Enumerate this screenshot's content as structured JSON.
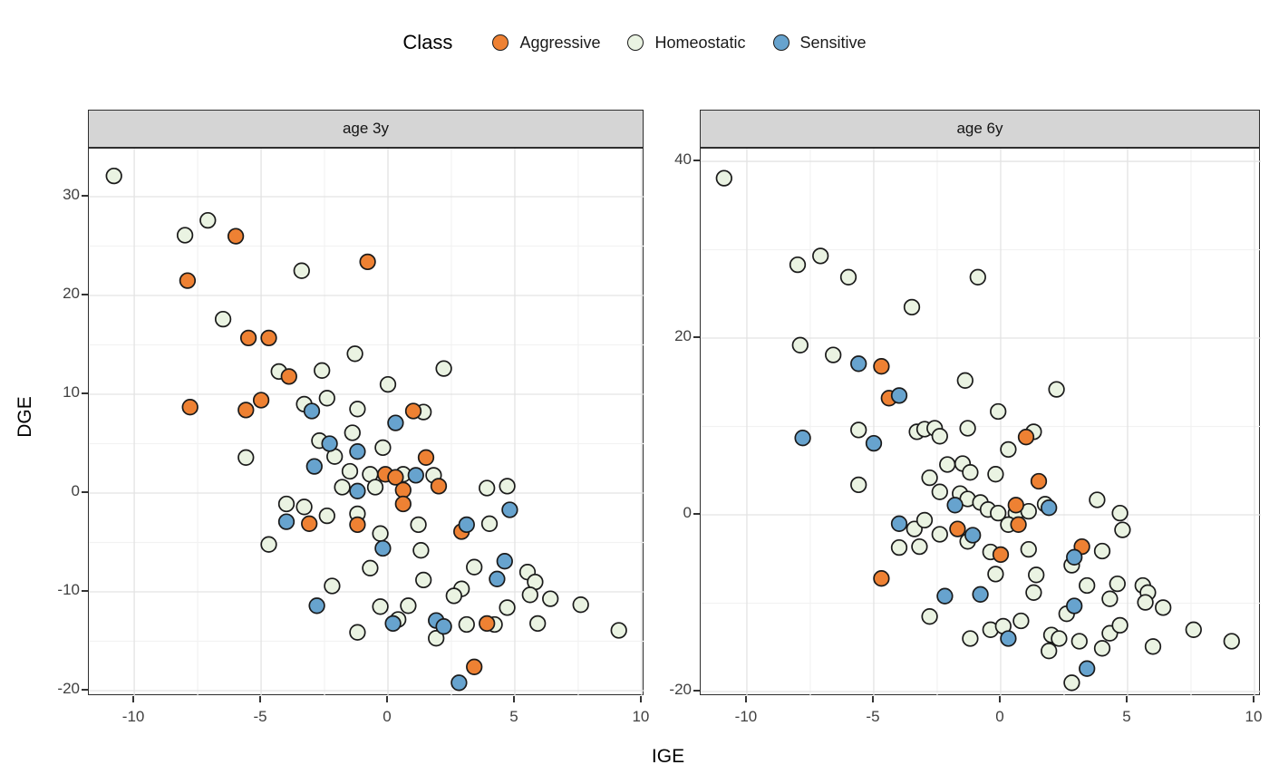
{
  "legend": {
    "title": "Class",
    "items": [
      {
        "label": "Aggressive",
        "color": "#EE8133"
      },
      {
        "label": "Homeostatic",
        "color": "#EAF3E2"
      },
      {
        "label": "Sensitive",
        "color": "#67A3CE"
      }
    ]
  },
  "axes": {
    "x_label": "IGE",
    "y_label": "DGE"
  },
  "colors": {
    "point_stroke": "#1a1a1a",
    "grid_major": "#e3e3e3",
    "grid_minor": "#f2f2f2",
    "panel_border": "#2e2e2e",
    "strip_bg": "#d5d5d5",
    "tick_text": "#404040"
  },
  "chart_data": [
    {
      "type": "scatter",
      "facet": "age 3y",
      "xlabel": "IGE",
      "ylabel": "DGE",
      "x_ticks": [
        -10,
        -5,
        0,
        5,
        10
      ],
      "y_ticks": [
        30,
        20,
        10,
        0,
        -10,
        -20
      ],
      "xlim": [
        -11.79,
        10.11
      ],
      "ylim": [
        -20.55,
        34.86
      ],
      "grid": true,
      "legend_position": "top",
      "series": [
        {
          "name": "Aggressive",
          "color": "#EE8133",
          "points": [
            [
              -7.9,
              21.5
            ],
            [
              -6,
              26
            ],
            [
              -0.8,
              23.4
            ],
            [
              -5.5,
              15.7
            ],
            [
              -4.7,
              15.7
            ],
            [
              -3.9,
              11.8
            ],
            [
              -7.8,
              8.7
            ],
            [
              -5.6,
              8.4
            ],
            [
              -5,
              9.4
            ],
            [
              1,
              8.3
            ],
            [
              1.5,
              3.6
            ],
            [
              -0.1,
              1.9
            ],
            [
              0.3,
              1.6
            ],
            [
              2,
              0.7
            ],
            [
              0.6,
              0.3
            ],
            [
              0.6,
              -1.1
            ],
            [
              -3.1,
              -3.1
            ],
            [
              -1.2,
              -3.2
            ],
            [
              2.9,
              -3.9
            ],
            [
              3.9,
              -13.2
            ],
            [
              3.4,
              -17.6
            ]
          ]
        },
        {
          "name": "Homeostatic",
          "color": "#EAF3E2",
          "points": [
            [
              -10.8,
              32.1
            ],
            [
              -7.1,
              27.6
            ],
            [
              -8,
              26.1
            ],
            [
              -3.4,
              22.5
            ],
            [
              -6.5,
              17.6
            ],
            [
              -1.3,
              14.1
            ],
            [
              -4.3,
              12.3
            ],
            [
              -2.6,
              12.4
            ],
            [
              -2.4,
              9.6
            ],
            [
              -3.3,
              9
            ],
            [
              -1.2,
              8.5
            ],
            [
              2.2,
              12.6
            ],
            [
              0,
              11
            ],
            [
              1.4,
              8.2
            ],
            [
              -5.6,
              3.6
            ],
            [
              -2.7,
              5.3
            ],
            [
              -1.4,
              6.1
            ],
            [
              -2.1,
              3.7
            ],
            [
              -1.5,
              2.2
            ],
            [
              -0.7,
              1.9
            ],
            [
              -1.8,
              0.6
            ],
            [
              -4,
              -1.1
            ],
            [
              -3.3,
              -1.4
            ],
            [
              -2.4,
              -2.3
            ],
            [
              -1.2,
              -2.1
            ],
            [
              -4.7,
              -5.2
            ],
            [
              -0.7,
              -7.6
            ],
            [
              -2.2,
              -9.4
            ],
            [
              -1.2,
              -14.1
            ],
            [
              -0.2,
              4.6
            ],
            [
              0.6,
              1.9
            ],
            [
              1.8,
              1.8
            ],
            [
              -0.5,
              0.6
            ],
            [
              3.9,
              0.5
            ],
            [
              4.7,
              0.7
            ],
            [
              1.2,
              -3.2
            ],
            [
              4,
              -3.1
            ],
            [
              -0.3,
              -4.1
            ],
            [
              1.3,
              -5.8
            ],
            [
              3.4,
              -7.5
            ],
            [
              1.4,
              -8.8
            ],
            [
              5.5,
              -8
            ],
            [
              5.8,
              -9
            ],
            [
              5.6,
              -10.3
            ],
            [
              6.4,
              -10.7
            ],
            [
              2.9,
              -9.7
            ],
            [
              2.6,
              -10.4
            ],
            [
              -0.3,
              -11.5
            ],
            [
              0.8,
              -11.4
            ],
            [
              4.7,
              -11.6
            ],
            [
              7.6,
              -11.3
            ],
            [
              0.4,
              -12.8
            ],
            [
              1.9,
              -14.7
            ],
            [
              3.1,
              -13.3
            ],
            [
              4.2,
              -13.3
            ],
            [
              5.9,
              -13.2
            ],
            [
              9.1,
              -13.9
            ]
          ]
        },
        {
          "name": "Sensitive",
          "color": "#67A3CE",
          "points": [
            [
              -3,
              8.3
            ],
            [
              0.3,
              7.1
            ],
            [
              -2.3,
              5
            ],
            [
              -2.9,
              2.7
            ],
            [
              -1.2,
              4.2
            ],
            [
              -1.2,
              0.2
            ],
            [
              1.1,
              1.8
            ],
            [
              -4,
              -2.9
            ],
            [
              4.8,
              -1.7
            ],
            [
              3.1,
              -3.2
            ],
            [
              -0.2,
              -5.6
            ],
            [
              4.6,
              -6.9
            ],
            [
              4.3,
              -8.7
            ],
            [
              -2.8,
              -11.4
            ],
            [
              0.2,
              -13.2
            ],
            [
              1.9,
              -12.9
            ],
            [
              2.2,
              -13.5
            ],
            [
              2.8,
              -19.2
            ]
          ]
        }
      ]
    },
    {
      "type": "scatter",
      "facet": "age 6y",
      "xlabel": "IGE",
      "ylabel": "DGE",
      "x_ticks": [
        -10,
        -5,
        0,
        5,
        10
      ],
      "y_ticks": [
        40,
        20,
        0,
        -20
      ],
      "xlim": [
        -11.82,
        10.25
      ],
      "ylim": [
        -20.51,
        41.44
      ],
      "grid": true,
      "legend_position": "top",
      "series": [
        {
          "name": "Aggressive",
          "color": "#EE8133",
          "points": [
            [
              -4.7,
              16.8
            ],
            [
              -4.4,
              13.2
            ],
            [
              1,
              8.8
            ],
            [
              1.5,
              3.8
            ],
            [
              0.6,
              1.1
            ],
            [
              0.7,
              -1.1
            ],
            [
              -1.7,
              -1.6
            ],
            [
              0,
              -4.5
            ],
            [
              -4.7,
              -7.2
            ],
            [
              3.2,
              -3.6
            ]
          ]
        },
        {
          "name": "Homeostatic",
          "color": "#EAF3E2",
          "points": [
            [
              -10.9,
              38.1
            ],
            [
              -7.1,
              29.3
            ],
            [
              -8,
              28.3
            ],
            [
              -6,
              26.9
            ],
            [
              -0.9,
              26.9
            ],
            [
              -3.5,
              23.5
            ],
            [
              -7.9,
              19.2
            ],
            [
              -6.6,
              18.1
            ],
            [
              -1.4,
              15.2
            ],
            [
              2.2,
              14.2
            ],
            [
              -0.1,
              11.7
            ],
            [
              -5.6,
              9.6
            ],
            [
              -3.3,
              9.4
            ],
            [
              -3,
              9.7
            ],
            [
              -2.6,
              9.8
            ],
            [
              -2.4,
              8.9
            ],
            [
              -1.3,
              9.8
            ],
            [
              0.3,
              7.4
            ],
            [
              -2.1,
              5.7
            ],
            [
              -1.5,
              5.8
            ],
            [
              -1.2,
              4.8
            ],
            [
              -2.8,
              4.2
            ],
            [
              -5.6,
              3.4
            ],
            [
              -2.4,
              2.6
            ],
            [
              -1.6,
              2.4
            ],
            [
              -1.3,
              1.8
            ],
            [
              -0.8,
              1.4
            ],
            [
              -0.2,
              4.6
            ],
            [
              -0.5,
              0.6
            ],
            [
              -0.1,
              0.2
            ],
            [
              0.6,
              0.2
            ],
            [
              1.1,
              0.4
            ],
            [
              1.75,
              1.2
            ],
            [
              3.8,
              1.7
            ],
            [
              4.7,
              0.2
            ],
            [
              1.3,
              9.4
            ],
            [
              -3.4,
              -1.6
            ],
            [
              -3,
              -0.6
            ],
            [
              -2.4,
              -2.2
            ],
            [
              -1.3,
              -3
            ],
            [
              -4,
              -3.7
            ],
            [
              -3.2,
              -3.6
            ],
            [
              0.3,
              -1.1
            ],
            [
              4.8,
              -1.7
            ],
            [
              1.1,
              -3.9
            ],
            [
              2.8,
              -5.7
            ],
            [
              4,
              -4.1
            ],
            [
              -0.4,
              -4.2
            ],
            [
              -0.2,
              -6.7
            ],
            [
              1.4,
              -6.8
            ],
            [
              1.3,
              -8.8
            ],
            [
              3.4,
              -8
            ],
            [
              4.6,
              -7.8
            ],
            [
              4.3,
              -9.5
            ],
            [
              5.6,
              -8
            ],
            [
              5.8,
              -8.8
            ],
            [
              5.7,
              -9.9
            ],
            [
              6.4,
              -10.5
            ],
            [
              2.6,
              -11.2
            ],
            [
              0.8,
              -12
            ],
            [
              -0.4,
              -13
            ],
            [
              0.1,
              -12.6
            ],
            [
              2,
              -13.6
            ],
            [
              2.3,
              -14
            ],
            [
              1.9,
              -15.4
            ],
            [
              3.1,
              -14.3
            ],
            [
              4,
              -15.1
            ],
            [
              4.3,
              -13.4
            ],
            [
              4.7,
              -12.5
            ],
            [
              6,
              -14.9
            ],
            [
              7.6,
              -13
            ],
            [
              9.1,
              -14.3
            ],
            [
              2.8,
              -19
            ],
            [
              -2.8,
              -11.5
            ],
            [
              -1.2,
              -14
            ]
          ]
        },
        {
          "name": "Sensitive",
          "color": "#67A3CE",
          "points": [
            [
              -5.6,
              17.1
            ],
            [
              -4,
              13.5
            ],
            [
              -7.8,
              8.7
            ],
            [
              -5,
              8.1
            ],
            [
              -1.8,
              1.1
            ],
            [
              1.9,
              0.8
            ],
            [
              -4,
              -1
            ],
            [
              -1.1,
              -2.3
            ],
            [
              -2.2,
              -9.2
            ],
            [
              -0.8,
              -9
            ],
            [
              2.9,
              -4.8
            ],
            [
              2.9,
              -10.3
            ],
            [
              0.3,
              -14
            ],
            [
              3.4,
              -17.4
            ]
          ]
        }
      ]
    }
  ]
}
